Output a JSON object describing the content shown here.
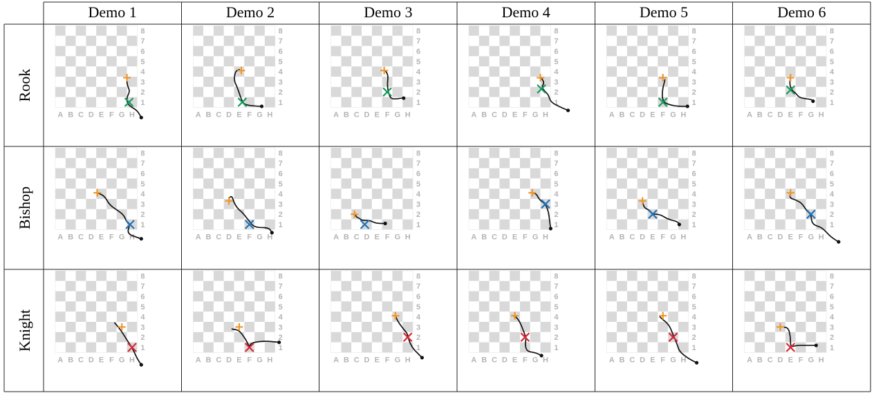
{
  "table": {
    "columns": [
      "Demo 1",
      "Demo 2",
      "Demo 3",
      "Demo 4",
      "Demo 5",
      "Demo 6"
    ],
    "rows": [
      "Rook",
      "Bishop",
      "Knight"
    ]
  },
  "board": {
    "files": [
      "A",
      "B",
      "C",
      "D",
      "E",
      "F",
      "G",
      "H"
    ],
    "ranks": [
      "1",
      "2",
      "3",
      "4",
      "5",
      "6",
      "7",
      "8"
    ]
  },
  "colors": {
    "start_marker": "#f0962d",
    "rook_end": "#12995a",
    "bishop_end": "#1f72b8",
    "knight_end": "#d82632",
    "trajectory": "#111111",
    "light_square": "#ffffff",
    "dark_square": "#d9d9d9",
    "label": "#b4b4b4"
  },
  "legend_semantics": {
    "start": "plus",
    "end": "x",
    "trajectory_end": "dot"
  },
  "demos": [
    [
      {
        "start": [
          7,
          2.9
        ],
        "end": [
          7.2,
          0.5
        ],
        "path": [
          [
            7,
            3
          ],
          [
            7,
            2.2
          ],
          [
            7.3,
            1.6
          ],
          [
            7,
            1
          ],
          [
            7,
            0.5
          ],
          [
            7.3,
            0.1
          ],
          [
            8,
            -0.3
          ],
          [
            8.4,
            -1
          ]
        ]
      },
      {
        "start": [
          4.7,
          3.6
        ],
        "end": [
          4.8,
          0.5
        ],
        "path": [
          [
            4.5,
            3.7
          ],
          [
            4.1,
            3.5
          ],
          [
            4,
            2.6
          ],
          [
            4.3,
            2
          ],
          [
            4.8,
            0.5
          ],
          [
            5.2,
            0.2
          ],
          [
            6.5,
            0.1
          ],
          [
            6.7,
            0.1
          ]
        ]
      },
      {
        "start": [
          5.2,
          3.6
        ],
        "end": [
          5.5,
          1.5
        ],
        "path": [
          [
            5.2,
            3.7
          ],
          [
            5.6,
            3.2
          ],
          [
            5.5,
            2.2
          ],
          [
            5.6,
            1.5
          ],
          [
            5.8,
            0.9
          ],
          [
            6.2,
            0.8
          ],
          [
            6.9,
            0.9
          ],
          [
            7.1,
            0.9
          ]
        ]
      },
      {
        "start": [
          7,
          2.9
        ],
        "end": [
          7.1,
          1.8
        ],
        "path": [
          [
            7,
            3
          ],
          [
            7.4,
            2.4
          ],
          [
            7.1,
            2
          ],
          [
            7.4,
            1.6
          ],
          [
            7.8,
            1.2
          ],
          [
            8,
            0.5
          ],
          [
            9,
            0
          ],
          [
            9.7,
            -0.3
          ]
        ]
      },
      {
        "start": [
          5.5,
          2.9
        ],
        "end": [
          5.5,
          0.5
        ],
        "path": [
          [
            5.7,
            2.7
          ],
          [
            5.4,
            1.5
          ],
          [
            5.5,
            0.5
          ],
          [
            6.3,
            0.2
          ],
          [
            7,
            0.1
          ],
          [
            7.9,
            0.1
          ]
        ]
      },
      {
        "start": [
          4.5,
          2.9
        ],
        "end": [
          4.5,
          1.7
        ],
        "path": [
          [
            4.5,
            3
          ],
          [
            4.4,
            2.2
          ],
          [
            4.7,
            1.6
          ],
          [
            5,
            1.4
          ],
          [
            5.4,
            0.9
          ],
          [
            6.5,
            0.8
          ],
          [
            6.7,
            0.6
          ]
        ]
      }
    ],
    [
      {
        "start": [
          4.1,
          3.6
        ],
        "end": [
          7.3,
          0.5
        ],
        "path": [
          [
            4.1,
            3.6
          ],
          [
            4.8,
            3.3
          ],
          [
            5.3,
            2.4
          ],
          [
            6.2,
            1.8
          ],
          [
            6.7,
            1.4
          ],
          [
            7,
            0.7
          ],
          [
            7.3,
            0.5
          ],
          [
            7,
            -0.4
          ],
          [
            8.1,
            -0.8
          ],
          [
            8.4,
            -0.9
          ]
        ]
      },
      {
        "start": [
          3.5,
          2.8
        ],
        "end": [
          5.5,
          0.5
        ],
        "path": [
          [
            3.5,
            3.1
          ],
          [
            3.8,
            3.3
          ],
          [
            4,
            2.6
          ],
          [
            4.4,
            2
          ],
          [
            4.8,
            1.7
          ],
          [
            5.5,
            0.8
          ],
          [
            6,
            0.2
          ],
          [
            7.4,
            0.2
          ],
          [
            7.7,
            -0.3
          ]
        ]
      },
      {
        "start": [
          2.3,
          1.5
        ],
        "end": [
          3.3,
          0.5
        ],
        "path": [
          [
            2.3,
            1.6
          ],
          [
            2.5,
            1.2
          ],
          [
            2.8,
            1.1
          ],
          [
            3,
            0.9
          ],
          [
            3.8,
            0.9
          ],
          [
            4.4,
            0.6
          ],
          [
            5.3,
            0.6
          ]
        ]
      },
      {
        "start": [
          6.2,
          3.6
        ],
        "end": [
          7.5,
          2.5
        ],
        "path": [
          [
            6.2,
            3.6
          ],
          [
            6.6,
            3.5
          ],
          [
            6.9,
            2.9
          ],
          [
            7.5,
            2.5
          ],
          [
            7.8,
            1.7
          ],
          [
            7.9,
            0.8
          ],
          [
            8,
            0.1
          ]
        ]
      },
      {
        "start": [
          3.5,
          2.8
        ],
        "end": [
          4.5,
          1.5
        ],
        "path": [
          [
            3.5,
            2.7
          ],
          [
            3.7,
            2.1
          ],
          [
            4.2,
            1.9
          ],
          [
            4.5,
            1.5
          ],
          [
            5.2,
            1.5
          ],
          [
            6,
            1
          ],
          [
            6.9,
            0.8
          ],
          [
            7.1,
            0.5
          ]
        ]
      },
      {
        "start": [
          4.5,
          3.6
        ],
        "end": [
          6.5,
          1.5
        ],
        "path": [
          [
            4.5,
            3.6
          ],
          [
            4.4,
            3.1
          ],
          [
            5,
            2.9
          ],
          [
            5.6,
            2.6
          ],
          [
            6.1,
            1.8
          ],
          [
            6.5,
            1.5
          ],
          [
            6.6,
            0.5
          ],
          [
            7.6,
            0.2
          ],
          [
            8.4,
            -0.7
          ],
          [
            9.2,
            -1.2
          ]
        ]
      }
    ],
    [
      {
        "start": [
          6.5,
          2.5
        ],
        "end": [
          7.5,
          0.5
        ],
        "path": [
          [
            5.8,
            2.9
          ],
          [
            6.4,
            2.2
          ],
          [
            7.2,
            0.9
          ],
          [
            7.5,
            0.5
          ],
          [
            8,
            -0.6
          ],
          [
            8.4,
            -1.2
          ]
        ]
      },
      {
        "start": [
          4.5,
          2.5
        ],
        "end": [
          5.5,
          0.5
        ],
        "path": [
          [
            3.8,
            2.3
          ],
          [
            4.4,
            2.2
          ],
          [
            4.7,
            1.9
          ],
          [
            5.2,
            1.2
          ],
          [
            5.5,
            0.5
          ],
          [
            5.6,
            0.9
          ],
          [
            6.5,
            1.1
          ],
          [
            7.4,
            1.1
          ],
          [
            8.4,
            1
          ]
        ]
      },
      {
        "start": [
          6.3,
          3.6
        ],
        "end": [
          7.5,
          1.5
        ],
        "path": [
          [
            6.3,
            3.6
          ],
          [
            6.5,
            3.1
          ],
          [
            7,
            2.4
          ],
          [
            7.5,
            1.8
          ],
          [
            7.6,
            1.2
          ],
          [
            8,
            0.4
          ],
          [
            8.5,
            -0.1
          ],
          [
            8.9,
            -0.5
          ]
        ]
      },
      {
        "start": [
          4.5,
          3.6
        ],
        "end": [
          5.5,
          1.5
        ],
        "path": [
          [
            4.3,
            3.6
          ],
          [
            4.6,
            3.5
          ],
          [
            5,
            3
          ],
          [
            5.5,
            1.7
          ],
          [
            5.6,
            1.4
          ],
          [
            5.5,
            0.7
          ],
          [
            5.7,
            0.1
          ],
          [
            6.5,
            0
          ],
          [
            7.1,
            -0.3
          ]
        ]
      },
      {
        "start": [
          5.5,
          3.6
        ],
        "end": [
          6.5,
          1.5
        ],
        "path": [
          [
            5.2,
            3.5
          ],
          [
            5.5,
            3.2
          ],
          [
            5.8,
            3
          ],
          [
            6.2,
            2.5
          ],
          [
            6.5,
            1.7
          ],
          [
            6.9,
            0.8
          ],
          [
            7.1,
            0.1
          ],
          [
            8,
            -0.6
          ],
          [
            8.8,
            -1
          ]
        ]
      },
      {
        "start": [
          3.5,
          2.5
        ],
        "end": [
          4.5,
          0.5
        ],
        "path": [
          [
            3.3,
            2.5
          ],
          [
            3.8,
            2.5
          ],
          [
            4.3,
            2.4
          ],
          [
            4.5,
            1.5
          ],
          [
            4.5,
            0.5
          ],
          [
            5,
            0.7
          ],
          [
            6,
            0.7
          ],
          [
            7,
            0.7
          ]
        ]
      }
    ]
  ]
}
